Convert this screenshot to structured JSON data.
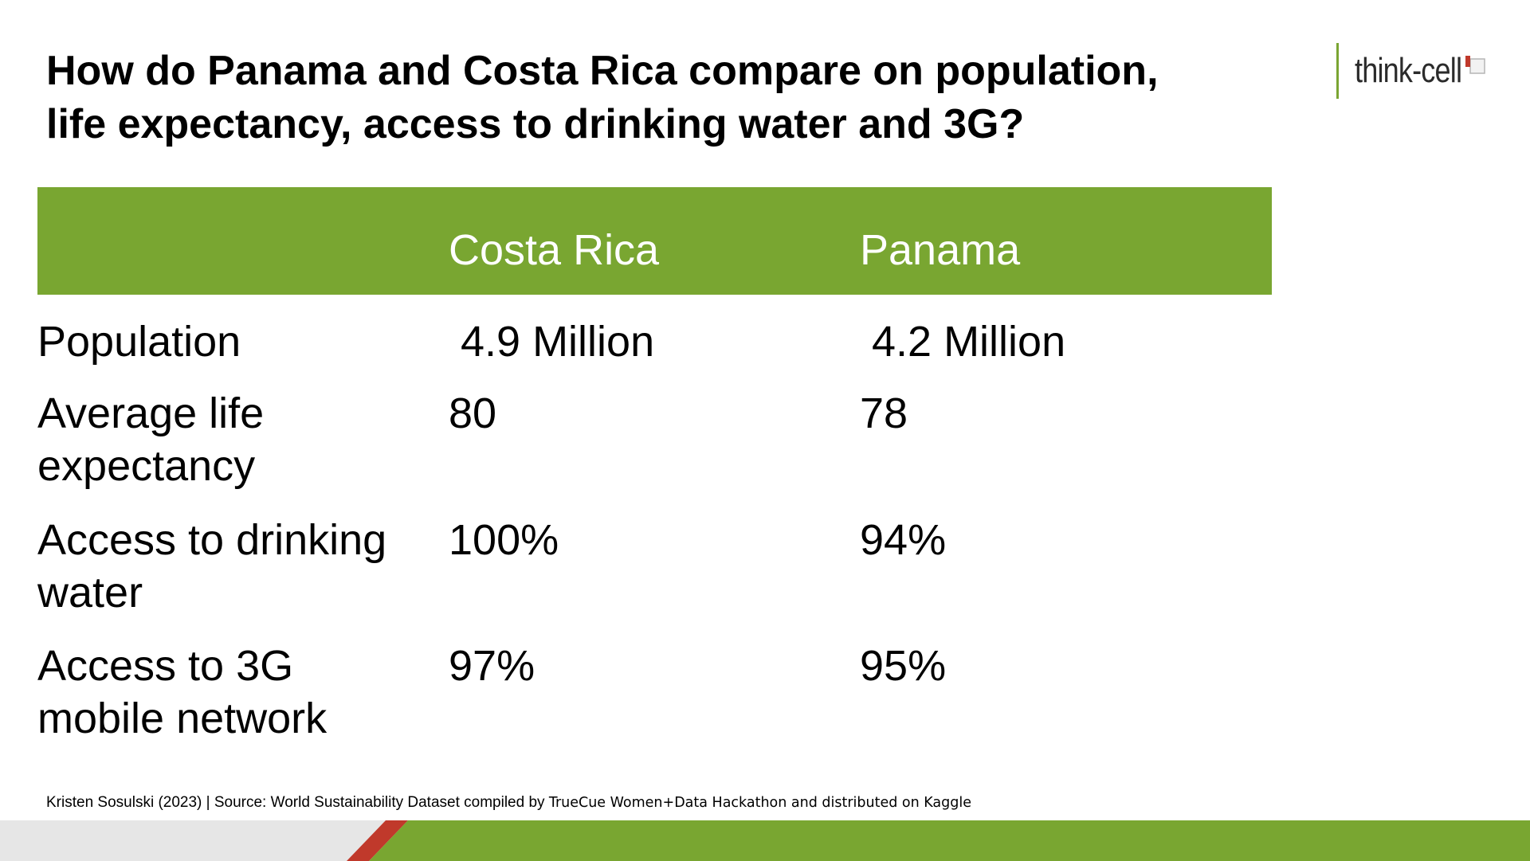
{
  "slide": {
    "title_line1": "How do Panama and Costa Rica compare on population,",
    "title_line2": "life expectancy, access to drinking water and 3G?"
  },
  "logo": {
    "text": "think-cell",
    "accent_color": "#7aa532",
    "mark_color": "#c0392b"
  },
  "table": {
    "header_color": "#79a631",
    "columns": [
      "Costa Rica",
      "Panama"
    ],
    "rows": [
      {
        "label": "Population",
        "costa_rica": "4.9 Million",
        "panama": "4.2 Million"
      },
      {
        "label_line1": "Average life",
        "label_line2": "expectancy",
        "costa_rica": "80",
        "panama": "78"
      },
      {
        "label_line1": "Access to drinking",
        "label_line2": "water",
        "costa_rica": "100%",
        "panama": "94%"
      },
      {
        "label_line1": "Access to 3G",
        "label_line2": "mobile network",
        "costa_rica": "97%",
        "panama": "95%"
      }
    ]
  },
  "footer": {
    "credit": "Kristen Sosulski (2023) | Source: World Sustainability Dataset compiled by",
    "credit_cont": "TrueCue Women+Data Hackathon and distributed on Kaggle"
  },
  "colors": {
    "green": "#79a631",
    "red": "#c0392b",
    "grey": "#e6e6e6"
  }
}
